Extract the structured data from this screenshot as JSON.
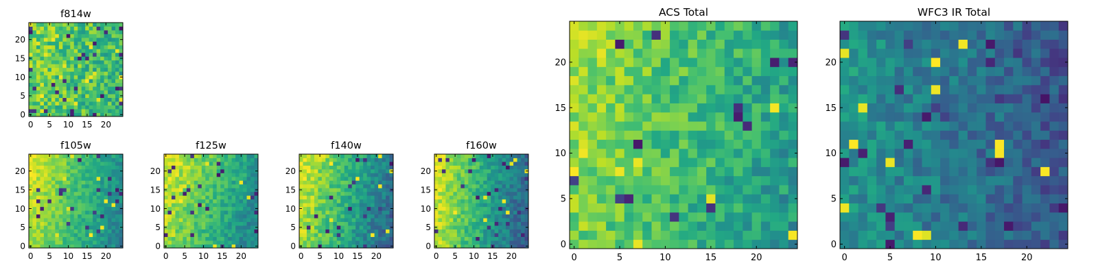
{
  "figure": {
    "colormap": "viridis",
    "background": "#ffffff"
  },
  "chart_data": [
    {
      "id": "f814w",
      "type": "heatmap",
      "title": "f814w",
      "xlabel": "",
      "ylabel": "",
      "grid_size": [
        25,
        25
      ],
      "xlim": [
        -0.5,
        24.5
      ],
      "ylim": [
        -0.5,
        24.5
      ],
      "xticks": [
        0,
        5,
        10,
        15,
        20
      ],
      "yticks": [
        0,
        5,
        10,
        15,
        20
      ],
      "xtick_labels": [
        "0",
        "5",
        "10",
        "15",
        "20"
      ],
      "ytick_labels": [
        "0",
        "5",
        "10",
        "15",
        "20"
      ],
      "pattern": {
        "seed": 11,
        "base": 0.78,
        "gradient_x": -0.14,
        "gradient_y": 0.02,
        "noise": 0.36,
        "dark_spots": 0.05
      }
    },
    {
      "id": "f105w",
      "type": "heatmap",
      "title": "f105w",
      "xlabel": "",
      "ylabel": "",
      "grid_size": [
        25,
        25
      ],
      "xlim": [
        -0.5,
        24.5
      ],
      "ylim": [
        -0.5,
        24.5
      ],
      "xticks": [
        0,
        5,
        10,
        15,
        20
      ],
      "yticks": [
        0,
        5,
        10,
        15,
        20
      ],
      "xtick_labels": [
        "0",
        "5",
        "10",
        "15",
        "20"
      ],
      "ytick_labels": [
        "0",
        "5",
        "10",
        "15",
        "20"
      ],
      "pattern": {
        "seed": 23,
        "base": 0.88,
        "gradient_x": -0.45,
        "gradient_y": 0.08,
        "noise": 0.2,
        "dark_spots": 0.025
      }
    },
    {
      "id": "f125w",
      "type": "heatmap",
      "title": "f125w",
      "xlabel": "",
      "ylabel": "",
      "grid_size": [
        25,
        25
      ],
      "xlim": [
        -0.5,
        24.5
      ],
      "ylim": [
        -0.5,
        24.5
      ],
      "xticks": [
        0,
        5,
        10,
        15,
        20
      ],
      "yticks": [
        0,
        5,
        10,
        15,
        20
      ],
      "xtick_labels": [
        "0",
        "5",
        "10",
        "15",
        "20"
      ],
      "ytick_labels": [
        "0",
        "5",
        "10",
        "15",
        "20"
      ],
      "pattern": {
        "seed": 37,
        "base": 0.84,
        "gradient_x": -0.42,
        "gradient_y": 0.12,
        "noise": 0.22,
        "dark_spots": 0.03
      }
    },
    {
      "id": "f140w",
      "type": "heatmap",
      "title": "f140w",
      "xlabel": "",
      "ylabel": "",
      "grid_size": [
        25,
        25
      ],
      "xlim": [
        -0.5,
        24.5
      ],
      "ylim": [
        -0.5,
        24.5
      ],
      "xticks": [
        0,
        5,
        10,
        15,
        20
      ],
      "yticks": [
        0,
        5,
        10,
        15,
        20
      ],
      "xtick_labels": [
        "0",
        "5",
        "10",
        "15",
        "20"
      ],
      "ytick_labels": [
        "0",
        "5",
        "10",
        "15",
        "20"
      ],
      "pattern": {
        "seed": 53,
        "base": 0.86,
        "gradient_x": -0.55,
        "gradient_y": 0.1,
        "noise": 0.24,
        "dark_spots": 0.035
      }
    },
    {
      "id": "f160w",
      "type": "heatmap",
      "title": "f160w",
      "xlabel": "",
      "ylabel": "",
      "grid_size": [
        25,
        25
      ],
      "xlim": [
        -0.5,
        24.5
      ],
      "ylim": [
        -0.5,
        24.5
      ],
      "xticks": [
        0,
        5,
        10,
        15,
        20
      ],
      "yticks": [
        0,
        5,
        10,
        15,
        20
      ],
      "xtick_labels": [
        "0",
        "5",
        "10",
        "15",
        "20"
      ],
      "ytick_labels": [
        "0",
        "5",
        "10",
        "15",
        "20"
      ],
      "pattern": {
        "seed": 71,
        "base": 0.9,
        "gradient_x": -0.62,
        "gradient_y": 0.06,
        "noise": 0.22,
        "dark_spots": 0.04
      }
    },
    {
      "id": "acs-total",
      "type": "heatmap",
      "title": "ACS Total",
      "xlabel": "",
      "ylabel": "",
      "grid_size": [
        25,
        25
      ],
      "xlim": [
        -0.5,
        24.5
      ],
      "ylim": [
        -0.5,
        24.5
      ],
      "xticks": [
        0,
        5,
        10,
        15,
        20
      ],
      "yticks": [
        0,
        5,
        10,
        15,
        20
      ],
      "xtick_labels": [
        "0",
        "5",
        "10",
        "15",
        "20"
      ],
      "ytick_labels": [
        "0",
        "5",
        "10",
        "15",
        "20"
      ],
      "pattern": {
        "seed": 89,
        "base": 0.8,
        "gradient_x": -0.28,
        "gradient_y": 0.06,
        "noise": 0.28,
        "dark_spots": 0.02
      }
    },
    {
      "id": "wfc3-ir-total",
      "type": "heatmap",
      "title": "WFC3 IR Total",
      "xlabel": "",
      "ylabel": "",
      "grid_size": [
        25,
        25
      ],
      "xlim": [
        -0.5,
        24.5
      ],
      "ylim": [
        -0.5,
        24.5
      ],
      "xticks": [
        0,
        5,
        10,
        15,
        20
      ],
      "yticks": [
        0,
        5,
        10,
        15,
        20
      ],
      "xtick_labels": [
        "0",
        "5",
        "10",
        "15",
        "20"
      ],
      "ytick_labels": [
        "0",
        "5",
        "10",
        "15",
        "20"
      ],
      "pattern": {
        "seed": 107,
        "base": 0.52,
        "gradient_x": -0.26,
        "gradient_y": 0.0,
        "noise": 0.24,
        "dark_spots": 0.04
      }
    }
  ]
}
